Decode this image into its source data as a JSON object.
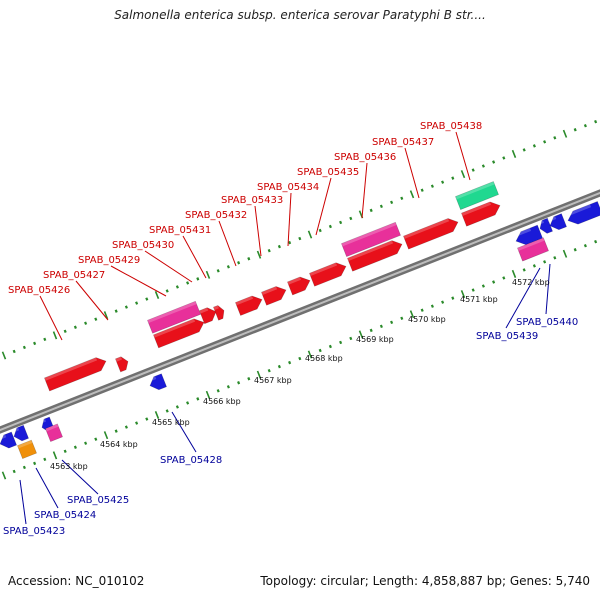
{
  "title": "Salmonella enterica subsp. enterica serovar Paratyphi B str....",
  "footer": {
    "accession": "Accession: NC_010102",
    "topology": "Topology: circular; Length: 4,858,887 bp; Genes: 5,740"
  },
  "colors": {
    "forward_cds": "#e8101a",
    "reverse_cds": "#1a1ad8",
    "misc_feature": "#e8309a",
    "rna": "#20d890",
    "orange_feature": "#f0900a",
    "label_top": "#cc0000",
    "label_bottom": "#00009a",
    "tick": "#2a8a2a"
  },
  "scale_labels": [
    "4563 kbp",
    "4564 kbp",
    "4565 kbp",
    "4566 kbp",
    "4567 kbp",
    "4568 kbp",
    "4569 kbp",
    "4570 kbp",
    "4571 kbp",
    "4572 kbp"
  ],
  "top_labels": [
    "SPAB_05426",
    "SPAB_05427",
    "SPAB_05429",
    "SPAB_05430",
    "SPAB_05431",
    "SPAB_05432",
    "SPAB_05433",
    "SPAB_05434",
    "SPAB_05435",
    "SPAB_05436",
    "SPAB_05437",
    "SPAB_05438"
  ],
  "bottom_labels": [
    "SPAB_05423",
    "SPAB_05424",
    "SPAB_05425",
    "SPAB_05428",
    "SPAB_05439",
    "SPAB_05440"
  ]
}
